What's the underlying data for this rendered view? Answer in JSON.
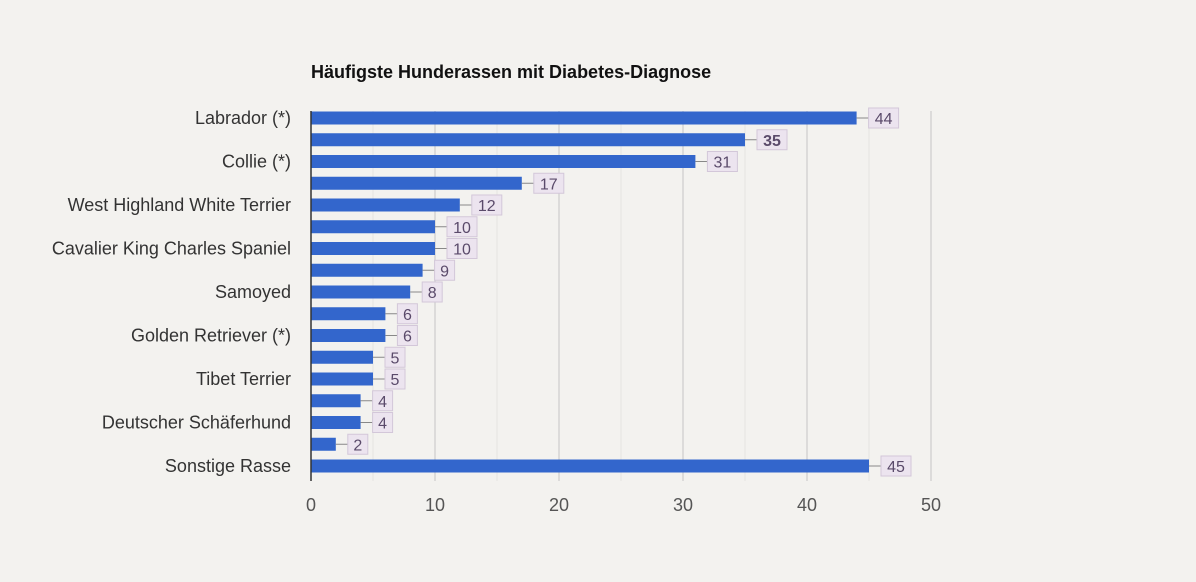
{
  "chart_data": {
    "type": "bar",
    "orientation": "horizontal",
    "title": "Häufigste Hunderassen mit Diabetes-Diagnose",
    "xlabel": "",
    "ylabel": "",
    "categories": [
      "Labrador (*)",
      "",
      "Collie (*)",
      "",
      "West Highland White Terrier",
      "",
      "Cavalier King Charles Spaniel",
      "",
      "Samoyed",
      "",
      "Golden Retriever (*)",
      "",
      "Tibet Terrier",
      "",
      "Deutscher Schäferhund",
      "",
      "Sonstige Rasse"
    ],
    "values": [
      44,
      35,
      31,
      17,
      12,
      10,
      10,
      9,
      8,
      6,
      6,
      5,
      5,
      4,
      4,
      2,
      45
    ],
    "bold_value_index": 1,
    "xlim": [
      0,
      50
    ],
    "x_ticks": [
      0,
      10,
      20,
      30,
      40,
      50
    ],
    "grid": true,
    "legend": "none",
    "bar_color": "#3366cc",
    "label_box_fill": "#ece4ef",
    "label_box_stroke": "#d3c7d9"
  }
}
